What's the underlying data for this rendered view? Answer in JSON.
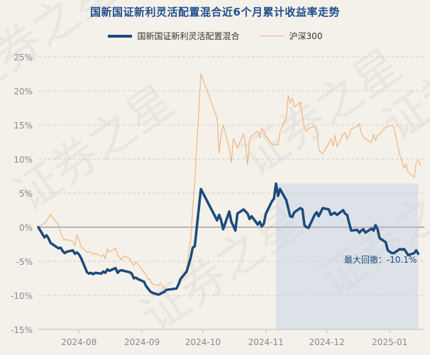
{
  "chart_data": {
    "type": "line",
    "title": "国新国证新利灵活配置混合近6个月累计收益率走势",
    "xlabel": "",
    "ylabel": "",
    "ylim": [
      -15,
      25
    ],
    "yticks": [
      25,
      20,
      15,
      10,
      5,
      0,
      -5,
      -10,
      -15
    ],
    "ytick_labels": [
      "25%",
      "20%",
      "15%",
      "10%",
      "5%",
      "0%",
      "-5%",
      "-10%",
      "-15%"
    ],
    "xticks": [
      {
        "date": "2024-08-01",
        "label": "2024-08"
      },
      {
        "date": "2024-09-01",
        "label": "2024-09"
      },
      {
        "date": "2024-10-01",
        "label": "2024-10"
      },
      {
        "date": "2024-11-01",
        "label": "2024-11"
      },
      {
        "date": "2024-12-01",
        "label": "2024-12"
      },
      {
        "date": "2025-01-01",
        "label": "2025-01"
      }
    ],
    "x_range": [
      "2024-07-12",
      "2025-01-18"
    ],
    "grid": "horizontal dashed",
    "legend_position": "top-center",
    "series": [
      {
        "name": "国新国证新利灵活配置混合",
        "color": "#1d4a7c",
        "style": "thick",
        "points": [
          [
            "2024-07-12",
            0.0
          ],
          [
            "2024-07-15",
            -1.5
          ],
          [
            "2024-07-16",
            -1.2
          ],
          [
            "2024-07-17",
            -1.6
          ],
          [
            "2024-07-18",
            -2.3
          ],
          [
            "2024-07-19",
            -2.5
          ],
          [
            "2024-07-22",
            -3.1
          ],
          [
            "2024-07-23",
            -3.0
          ],
          [
            "2024-07-24",
            -3.5
          ],
          [
            "2024-07-25",
            -3.8
          ],
          [
            "2024-07-26",
            -3.6
          ],
          [
            "2024-07-29",
            -3.4
          ],
          [
            "2024-07-30",
            -3.9
          ],
          [
            "2024-07-31",
            -3.7
          ],
          [
            "2024-08-01",
            -4.0
          ],
          [
            "2024-08-02",
            -4.5
          ],
          [
            "2024-08-05",
            -6.6
          ],
          [
            "2024-08-06",
            -6.8
          ],
          [
            "2024-08-07",
            -6.7
          ],
          [
            "2024-08-08",
            -6.9
          ],
          [
            "2024-08-09",
            -6.7
          ],
          [
            "2024-08-12",
            -6.8
          ],
          [
            "2024-08-13",
            -6.5
          ],
          [
            "2024-08-14",
            -6.7
          ],
          [
            "2024-08-15",
            -6.2
          ],
          [
            "2024-08-16",
            -6.4
          ],
          [
            "2024-08-19",
            -6.0
          ],
          [
            "2024-08-20",
            -6.7
          ],
          [
            "2024-08-21",
            -6.4
          ],
          [
            "2024-08-22",
            -6.3
          ],
          [
            "2024-08-23",
            -6.4
          ],
          [
            "2024-08-26",
            -6.6
          ],
          [
            "2024-08-27",
            -6.8
          ],
          [
            "2024-08-28",
            -7.5
          ],
          [
            "2024-08-29",
            -7.4
          ],
          [
            "2024-08-30",
            -7.6
          ],
          [
            "2024-09-02",
            -8.0
          ],
          [
            "2024-09-03",
            -8.6
          ],
          [
            "2024-09-04",
            -9.0
          ],
          [
            "2024-09-05",
            -9.4
          ],
          [
            "2024-09-06",
            -9.6
          ],
          [
            "2024-09-09",
            -9.9
          ],
          [
            "2024-09-10",
            -9.8
          ],
          [
            "2024-09-11",
            -9.6
          ],
          [
            "2024-09-12",
            -9.5
          ],
          [
            "2024-09-13",
            -9.2
          ],
          [
            "2024-09-18",
            -9.0
          ],
          [
            "2024-09-19",
            -8.4
          ],
          [
            "2024-09-20",
            -7.6
          ],
          [
            "2024-09-23",
            -6.5
          ],
          [
            "2024-09-24",
            -5.5
          ],
          [
            "2024-09-25",
            -4.5
          ],
          [
            "2024-09-26",
            -3.0
          ],
          [
            "2024-09-27",
            -2.8
          ],
          [
            "2024-09-30",
            5.6
          ],
          [
            "2024-10-08",
            1.0
          ],
          [
            "2024-10-09",
            1.8
          ],
          [
            "2024-10-10",
            1.0
          ],
          [
            "2024-10-11",
            -0.3
          ],
          [
            "2024-10-14",
            2.3
          ],
          [
            "2024-10-15",
            0.8
          ],
          [
            "2024-10-16",
            0.2
          ],
          [
            "2024-10-17",
            -0.5
          ],
          [
            "2024-10-18",
            2.0
          ],
          [
            "2024-10-21",
            2.6
          ],
          [
            "2024-10-22",
            2.3
          ],
          [
            "2024-10-23",
            2.0
          ],
          [
            "2024-10-24",
            1.2
          ],
          [
            "2024-10-25",
            1.6
          ],
          [
            "2024-10-28",
            0.4
          ],
          [
            "2024-10-29",
            0.8
          ],
          [
            "2024-10-30",
            0.1
          ],
          [
            "2024-10-31",
            0.5
          ],
          [
            "2024-11-01",
            2.0
          ],
          [
            "2024-11-04",
            3.8
          ],
          [
            "2024-11-05",
            4.2
          ],
          [
            "2024-11-06",
            6.4
          ],
          [
            "2024-11-07",
            4.6
          ],
          [
            "2024-11-08",
            5.6
          ],
          [
            "2024-11-11",
            4.0
          ],
          [
            "2024-11-12",
            2.8
          ],
          [
            "2024-11-13",
            1.6
          ],
          [
            "2024-11-14",
            1.5
          ],
          [
            "2024-11-15",
            2.2
          ],
          [
            "2024-11-18",
            2.8
          ],
          [
            "2024-11-19",
            2.6
          ],
          [
            "2024-11-20",
            0.3
          ],
          [
            "2024-11-21",
            0.0
          ],
          [
            "2024-11-22",
            -0.1
          ],
          [
            "2024-11-25",
            1.8
          ],
          [
            "2024-11-26",
            2.2
          ],
          [
            "2024-11-27",
            1.6
          ],
          [
            "2024-11-28",
            2.2
          ],
          [
            "2024-11-29",
            2.8
          ],
          [
            "2024-12-02",
            2.6
          ],
          [
            "2024-12-03",
            1.8
          ],
          [
            "2024-12-04",
            2.0
          ],
          [
            "2024-12-05",
            2.1
          ],
          [
            "2024-12-06",
            1.8
          ],
          [
            "2024-12-09",
            2.5
          ],
          [
            "2024-12-10",
            2.0
          ],
          [
            "2024-12-11",
            1.8
          ],
          [
            "2024-12-12",
            0.6
          ],
          [
            "2024-12-13",
            -0.5
          ],
          [
            "2024-12-16",
            -0.4
          ],
          [
            "2024-12-17",
            -0.8
          ],
          [
            "2024-12-18",
            -0.5
          ],
          [
            "2024-12-19",
            -0.3
          ],
          [
            "2024-12-20",
            -0.8
          ],
          [
            "2024-12-23",
            -0.2
          ],
          [
            "2024-12-24",
            -0.5
          ],
          [
            "2024-12-25",
            0.3
          ],
          [
            "2024-12-26",
            -0.3
          ],
          [
            "2024-12-27",
            -1.6
          ],
          [
            "2024-12-30",
            -2.2
          ],
          [
            "2024-12-31",
            -3.4
          ],
          [
            "2025-01-02",
            -3.8
          ],
          [
            "2025-01-03",
            -3.8
          ],
          [
            "2025-01-06",
            -3.2
          ],
          [
            "2025-01-07",
            -3.3
          ],
          [
            "2025-01-08",
            -3.2
          ],
          [
            "2025-01-09",
            -3.6
          ],
          [
            "2025-01-10",
            -4.1
          ],
          [
            "2025-01-13",
            -3.8
          ],
          [
            "2025-01-14",
            -3.4
          ],
          [
            "2025-01-15",
            -3.9
          ]
        ]
      },
      {
        "name": "沪深300",
        "color": "#f2b47c",
        "style": "thin",
        "points": [
          [
            "2024-07-12",
            0.0
          ],
          [
            "2024-07-15",
            0.6
          ],
          [
            "2024-07-16",
            0.9
          ],
          [
            "2024-07-17",
            1.3
          ],
          [
            "2024-07-18",
            1.9
          ],
          [
            "2024-07-19",
            1.4
          ],
          [
            "2024-07-22",
            0.3
          ],
          [
            "2024-07-23",
            -0.9
          ],
          [
            "2024-07-24",
            -1.5
          ],
          [
            "2024-07-25",
            -1.9
          ],
          [
            "2024-07-26",
            -1.8
          ],
          [
            "2024-07-29",
            -2.1
          ],
          [
            "2024-07-30",
            -2.7
          ],
          [
            "2024-07-31",
            -1.1
          ],
          [
            "2024-08-01",
            -1.8
          ],
          [
            "2024-08-02",
            -2.8
          ],
          [
            "2024-08-05",
            -3.7
          ],
          [
            "2024-08-06",
            -3.6
          ],
          [
            "2024-08-07",
            -3.7
          ],
          [
            "2024-08-08",
            -4.0
          ],
          [
            "2024-08-09",
            -3.8
          ],
          [
            "2024-08-12",
            -4.3
          ],
          [
            "2024-08-13",
            -4.0
          ],
          [
            "2024-08-14",
            -4.6
          ],
          [
            "2024-08-15",
            -3.2
          ],
          [
            "2024-08-16",
            -3.6
          ],
          [
            "2024-08-19",
            -3.1
          ],
          [
            "2024-08-20",
            -4.1
          ],
          [
            "2024-08-21",
            -4.4
          ],
          [
            "2024-08-22",
            -4.8
          ],
          [
            "2024-08-23",
            -4.2
          ],
          [
            "2024-08-26",
            -4.6
          ],
          [
            "2024-08-27",
            -5.2
          ],
          [
            "2024-08-28",
            -5.6
          ],
          [
            "2024-08-29",
            -5.1
          ],
          [
            "2024-08-30",
            -5.4
          ],
          [
            "2024-09-02",
            -6.6
          ],
          [
            "2024-09-03",
            -6.9
          ],
          [
            "2024-09-04",
            -7.7
          ],
          [
            "2024-09-05",
            -7.6
          ],
          [
            "2024-09-06",
            -8.3
          ],
          [
            "2024-09-09",
            -8.6
          ],
          [
            "2024-09-10",
            -8.2
          ],
          [
            "2024-09-11",
            -8.6
          ],
          [
            "2024-09-12",
            -8.9
          ],
          [
            "2024-09-13",
            -9.3
          ],
          [
            "2024-09-18",
            -8.9
          ],
          [
            "2024-09-19",
            -8.2
          ],
          [
            "2024-09-20",
            -7.5
          ],
          [
            "2024-09-23",
            -6.5
          ],
          [
            "2024-09-24",
            -3.7
          ],
          [
            "2024-09-25",
            -1.9
          ],
          [
            "2024-09-26",
            2.8
          ],
          [
            "2024-09-27",
            6.8
          ],
          [
            "2024-09-30",
            22.5
          ],
          [
            "2024-10-08",
            16.0
          ],
          [
            "2024-10-09",
            10.9
          ],
          [
            "2024-10-10",
            13.8
          ],
          [
            "2024-10-11",
            15.0
          ],
          [
            "2024-10-14",
            11.7
          ],
          [
            "2024-10-15",
            9.5
          ],
          [
            "2024-10-16",
            13.0
          ],
          [
            "2024-10-17",
            12.4
          ],
          [
            "2024-10-18",
            11.6
          ],
          [
            "2024-10-21",
            13.7
          ],
          [
            "2024-10-22",
            12.2
          ],
          [
            "2024-10-23",
            9.1
          ],
          [
            "2024-10-24",
            13.0
          ],
          [
            "2024-10-25",
            13.4
          ],
          [
            "2024-10-28",
            14.1
          ],
          [
            "2024-10-29",
            13.1
          ],
          [
            "2024-10-30",
            14.5
          ],
          [
            "2024-10-31",
            14.1
          ],
          [
            "2024-11-01",
            13.4
          ],
          [
            "2024-11-04",
            12.2
          ],
          [
            "2024-11-05",
            12.0
          ],
          [
            "2024-11-06",
            12.2
          ],
          [
            "2024-11-07",
            12.0
          ],
          [
            "2024-11-08",
            14.1
          ],
          [
            "2024-11-11",
            15.9
          ],
          [
            "2024-11-12",
            19.3
          ],
          [
            "2024-11-13",
            18.2
          ],
          [
            "2024-11-14",
            18.9
          ],
          [
            "2024-11-15",
            17.6
          ],
          [
            "2024-11-18",
            18.3
          ],
          [
            "2024-11-19",
            16.3
          ],
          [
            "2024-11-20",
            14.6
          ],
          [
            "2024-11-21",
            14.0
          ],
          [
            "2024-11-22",
            14.5
          ],
          [
            "2024-11-25",
            14.8
          ],
          [
            "2024-11-26",
            14.2
          ],
          [
            "2024-11-27",
            11.5
          ],
          [
            "2024-11-28",
            11.0
          ],
          [
            "2024-11-29",
            10.8
          ],
          [
            "2024-12-02",
            12.3
          ],
          [
            "2024-12-03",
            13.0
          ],
          [
            "2024-12-04",
            11.9
          ],
          [
            "2024-12-05",
            13.5
          ],
          [
            "2024-12-06",
            11.8
          ],
          [
            "2024-12-09",
            13.6
          ],
          [
            "2024-12-10",
            13.9
          ],
          [
            "2024-12-11",
            12.9
          ],
          [
            "2024-12-12",
            13.6
          ],
          [
            "2024-12-13",
            14.4
          ],
          [
            "2024-12-16",
            14.8
          ],
          [
            "2024-12-17",
            15.2
          ],
          [
            "2024-12-18",
            13.8
          ],
          [
            "2024-12-19",
            13.2
          ],
          [
            "2024-12-20",
            13.0
          ],
          [
            "2024-12-23",
            12.4
          ],
          [
            "2024-12-24",
            13.6
          ],
          [
            "2024-12-25",
            12.7
          ],
          [
            "2024-12-26",
            13.5
          ],
          [
            "2024-12-27",
            13.7
          ],
          [
            "2024-12-30",
            14.7
          ],
          [
            "2024-12-31",
            14.7
          ],
          [
            "2025-01-02",
            15.0
          ],
          [
            "2025-01-03",
            14.6
          ],
          [
            "2025-01-06",
            10.5
          ],
          [
            "2025-01-07",
            9.7
          ],
          [
            "2025-01-08",
            8.7
          ],
          [
            "2025-01-09",
            9.2
          ],
          [
            "2025-01-10",
            8.1
          ],
          [
            "2025-01-13",
            7.3
          ],
          [
            "2025-01-14",
            9.5
          ],
          [
            "2025-01-15",
            9.8
          ],
          [
            "2025-01-16",
            9.1
          ]
        ]
      }
    ],
    "max_drawdown": {
      "start": "2024-11-06",
      "end": "2025-01-15",
      "label": "最大回撤：-10.1%"
    },
    "watermark": "证券之星"
  }
}
